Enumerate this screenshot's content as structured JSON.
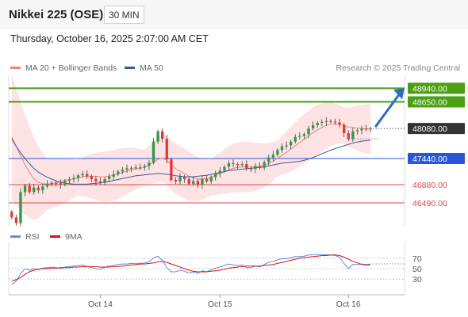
{
  "header": {
    "title": "Nikkei 225 (OSE)",
    "interval": "30 MIN"
  },
  "datetime": "Thursday, October 16, 2025 2:07:00 AM CET",
  "legend": {
    "ma20": "MA 20 + Bollinger Bands",
    "ma50": "MA 50",
    "rsi": "RSI",
    "ma9": "9MA"
  },
  "credit": "Research © 2025 Trading Central",
  "colors": {
    "up": "#2e9a4a",
    "down": "#e53935",
    "ma20": "#f08080",
    "band": "#fde3e3",
    "ma50": "#3a5aa0",
    "target": "#4a9f12",
    "pivot": "#2a55d8",
    "support": "#e0474c",
    "rsi": "#5b8ee6",
    "rsi_ma": "#e01010"
  },
  "chart_data": [
    {
      "type": "candlestick",
      "ylim": [
        46000,
        49200
      ],
      "x_ticks": [
        "Oct 14",
        "Oct 15",
        "Oct 16"
      ],
      "levels": [
        {
          "value": 48940,
          "label": "48940.00",
          "role": "target"
        },
        {
          "value": 48650,
          "label": "48650.00",
          "role": "target"
        },
        {
          "value": 48080,
          "label": "48080.00",
          "role": "last"
        },
        {
          "value": 47440,
          "label": "47440.00",
          "role": "pivot"
        },
        {
          "value": 46880,
          "label": "46880.00",
          "role": "support"
        },
        {
          "value": 46490,
          "label": "46490.00",
          "role": "support"
        }
      ],
      "close": [
        46180,
        46060,
        46720,
        46860,
        46720,
        46820,
        46760,
        46840,
        46900,
        46920,
        46910,
        46880,
        46960,
        46990,
        47020,
        47080,
        47110,
        47060,
        47000,
        46950,
        46920,
        47000,
        47050,
        47100,
        47160,
        47200,
        47230,
        47240,
        47250,
        47250,
        47280,
        47350,
        47800,
        48020,
        47860,
        47420,
        46980,
        46950,
        47050,
        47000,
        46900,
        46960,
        46880,
        47000,
        46950,
        47040,
        47120,
        47180,
        47260,
        47340,
        47320,
        47300,
        47320,
        47230,
        47220,
        47280,
        47240,
        47360,
        47460,
        47520,
        47620,
        47700,
        47720,
        47800,
        47900,
        47920,
        47960,
        48080,
        48150,
        48200,
        48220,
        48240,
        48230,
        48210,
        48160,
        47980,
        47850,
        48020,
        48040,
        48080,
        48060,
        48080
      ],
      "open_range": "approx",
      "ma20": [
        47900,
        47700,
        47500,
        47300,
        47150,
        47000,
        46930,
        46900,
        46890,
        46900,
        46920,
        46950,
        46970,
        46990,
        47010,
        47030,
        47050,
        47060,
        47060,
        47060,
        47050,
        47050,
        47060,
        47080,
        47110,
        47140,
        47170,
        47200,
        47220,
        47230,
        47250,
        47300,
        47360,
        47420,
        47450,
        47400,
        47300,
        47220,
        47170,
        47120,
        47060,
        47030,
        47000,
        47000,
        47010,
        47040,
        47080,
        47120,
        47160,
        47200,
        47230,
        47250,
        47260,
        47260,
        47260,
        47260,
        47270,
        47290,
        47330,
        47380,
        47440,
        47510,
        47570,
        47640,
        47710,
        47780,
        47850,
        47920,
        47990,
        48050,
        48100,
        48150,
        48170,
        48180,
        48170,
        48140,
        48110,
        48100,
        48090,
        48080,
        48070,
        48070
      ],
      "ma50": [
        47850,
        47700,
        47560,
        47440,
        47330,
        47230,
        47150,
        47090,
        47040,
        47000,
        46960,
        46930,
        46910,
        46900,
        46890,
        46890,
        46890,
        46890,
        46900,
        46910,
        46920,
        46930,
        46950,
        46970,
        46990,
        47010,
        47030,
        47050,
        47070,
        47080,
        47090,
        47100,
        47110,
        47120,
        47110,
        47100,
        47090,
        47070,
        47060,
        47050,
        47050,
        47050,
        47060,
        47070,
        47080,
        47100,
        47120,
        47140,
        47160,
        47180,
        47190,
        47200,
        47210,
        47220,
        47230,
        47240,
        47250,
        47260,
        47280,
        47300,
        47320,
        47340,
        47350,
        47360,
        47370,
        47380,
        47400,
        47430,
        47460,
        47500,
        47540,
        47580,
        47620,
        47650,
        47680,
        47710,
        47740,
        47770,
        47790,
        47810,
        47820,
        47830
      ]
    },
    {
      "type": "line",
      "ylim": [
        0,
        100
      ],
      "y_ticks": [
        30,
        50,
        70
      ],
      "series": [
        {
          "name": "RSI",
          "values": [
            20,
            26,
            40,
            50,
            47,
            50,
            48,
            51,
            52,
            53,
            52,
            50,
            53,
            54,
            55,
            56,
            57,
            54,
            52,
            50,
            49,
            53,
            55,
            56,
            58,
            59,
            59,
            60,
            60,
            60,
            61,
            63,
            70,
            74,
            66,
            52,
            44,
            44,
            47,
            45,
            42,
            44,
            41,
            46,
            44,
            48,
            51,
            53,
            56,
            59,
            57,
            56,
            57,
            52,
            52,
            55,
            53,
            58,
            62,
            64,
            67,
            69,
            69,
            71,
            73,
            73,
            74,
            76,
            77,
            77,
            77,
            77,
            76,
            75,
            72,
            60,
            50,
            58,
            58,
            59,
            58,
            59
          ]
        },
        {
          "name": "9MA",
          "values": [
            26,
            29,
            33,
            39,
            44,
            47,
            49,
            50,
            50,
            51,
            51,
            52,
            52,
            52,
            53,
            53,
            54,
            54,
            54,
            54,
            53,
            53,
            53,
            54,
            54,
            55,
            56,
            57,
            58,
            59,
            59,
            60,
            61,
            63,
            64,
            62,
            59,
            56,
            53,
            50,
            47,
            45,
            44,
            44,
            44,
            45,
            46,
            47,
            49,
            51,
            52,
            53,
            54,
            55,
            55,
            55,
            55,
            56,
            57,
            58,
            60,
            62,
            64,
            66,
            68,
            70,
            71,
            72,
            73,
            74,
            75,
            75,
            76,
            76,
            75,
            72,
            68,
            64,
            61,
            58,
            57,
            57
          ]
        }
      ]
    }
  ]
}
